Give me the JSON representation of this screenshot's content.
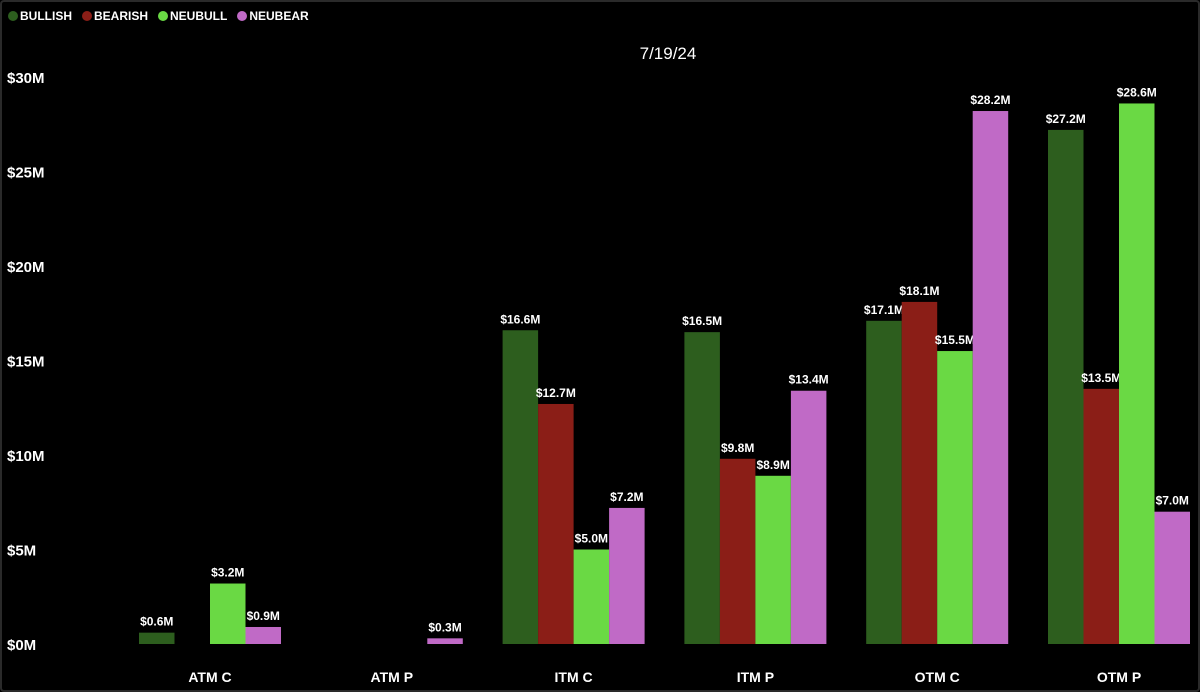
{
  "chart_data": {
    "type": "bar",
    "title": "7/19/24",
    "categories": [
      "ATM C",
      "ATM P",
      "ITM C",
      "ITM P",
      "OTM C",
      "OTM P"
    ],
    "y_ticks": [
      "$0M",
      "$5M",
      "$10M",
      "$15M",
      "$20M",
      "$25M",
      "$30M"
    ],
    "ylim": [
      0,
      30
    ],
    "unit": "M",
    "series": [
      {
        "name": "BULLISH",
        "color": "#2d5e1e",
        "values": [
          0.6,
          null,
          16.6,
          16.5,
          17.1,
          27.2
        ],
        "labels": [
          "$0.6M",
          null,
          "$16.6M",
          "$16.5M",
          "$17.1M",
          "$27.2M"
        ]
      },
      {
        "name": "BEARISH",
        "color": "#8b1e17",
        "values": [
          null,
          null,
          12.7,
          9.8,
          18.1,
          13.5
        ],
        "labels": [
          null,
          null,
          "$12.7M",
          "$9.8M",
          "$18.1M",
          "$13.5M"
        ]
      },
      {
        "name": "NEUBULL",
        "color": "#6ad944",
        "values": [
          3.2,
          null,
          5.0,
          8.9,
          15.5,
          28.6
        ],
        "labels": [
          "$3.2M",
          null,
          "$5.0M",
          "$8.9M",
          "$15.5M",
          "$28.6M"
        ]
      },
      {
        "name": "NEUBEAR",
        "color": "#c06ac6",
        "values": [
          0.9,
          0.3,
          7.2,
          13.4,
          28.2,
          7.0
        ],
        "labels": [
          "$0.9M",
          "$0.3M",
          "$7.2M",
          "$13.4M",
          "$28.2M",
          "$7.0M"
        ]
      }
    ],
    "grid": false,
    "legend_position": "top-left"
  }
}
